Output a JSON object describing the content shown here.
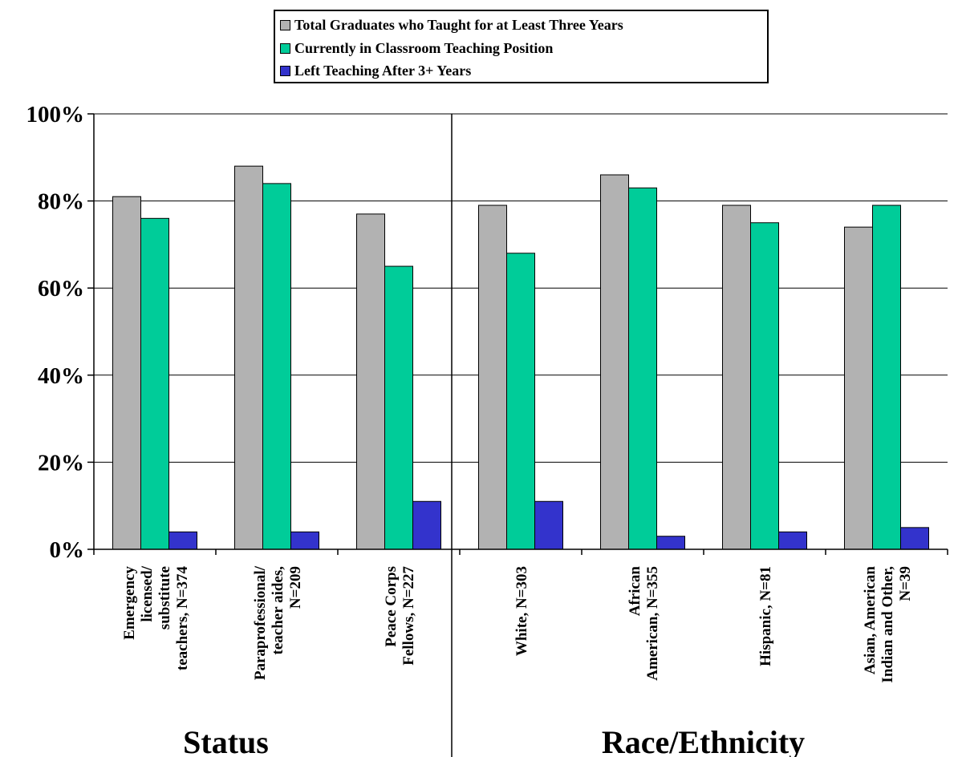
{
  "chart_data": {
    "type": "bar",
    "groups": [
      {
        "label": "Status",
        "categories": [
          0,
          1,
          2
        ]
      },
      {
        "label": "Race/Ethnicity",
        "categories": [
          3,
          4,
          5,
          6
        ]
      }
    ],
    "categories": [
      [
        "Emergency",
        "licensed/",
        "substitute",
        "teachers, N=374"
      ],
      [
        "Paraprofessional/",
        "teacher aides,",
        "N=209"
      ],
      [
        "Peace Corps",
        "Fellows, N=227"
      ],
      [
        "White, N=303"
      ],
      [
        "African",
        "American, N=355"
      ],
      [
        "Hispanic, N=81"
      ],
      [
        "Asian, American",
        "Indian and Other,",
        "N=39"
      ]
    ],
    "series": [
      {
        "name": "Total Graduates who Taught for at Least Three Years",
        "color": "#b2b2b2",
        "values": [
          81,
          88,
          77,
          79,
          86,
          79,
          74
        ]
      },
      {
        "name": "Currently in Classroom Teaching Position",
        "color": "#00cc99",
        "values": [
          76,
          84,
          65,
          68,
          83,
          75,
          79
        ]
      },
      {
        "name": "Left Teaching After 3+ Years",
        "color": "#3333cc",
        "values": [
          4,
          4,
          11,
          11,
          3,
          4,
          5
        ]
      }
    ],
    "y_ticks": [
      "0%",
      "20%",
      "40%",
      "60%",
      "80%",
      "100%"
    ],
    "ylim": [
      0,
      100
    ],
    "grid": true,
    "legend_position": "top-center"
  }
}
